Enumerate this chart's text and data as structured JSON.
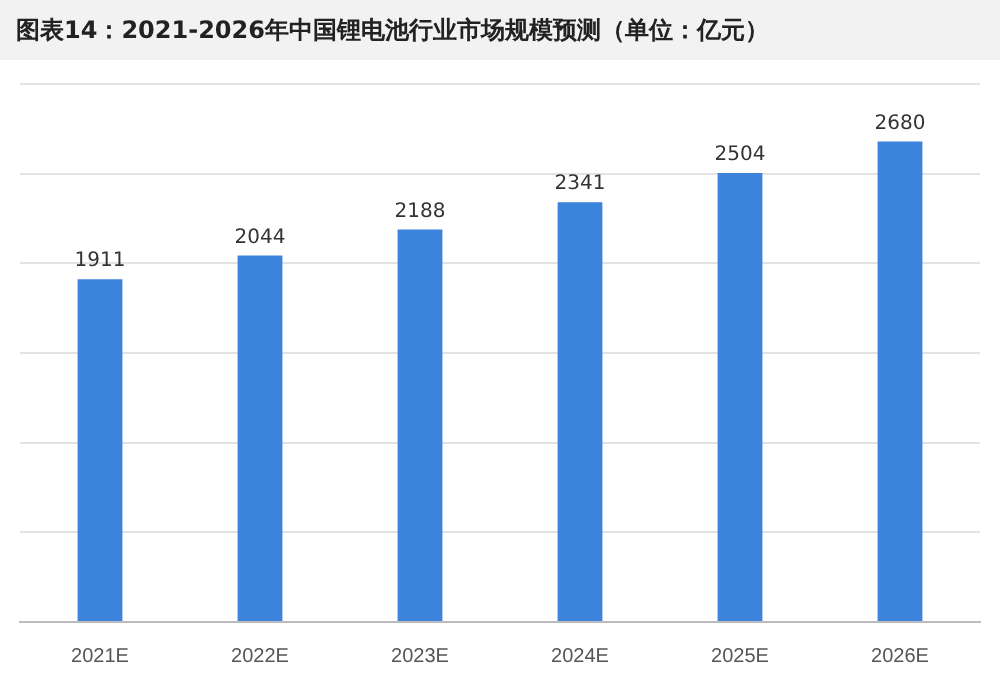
{
  "chart_data": {
    "type": "bar",
    "title": "图表14：2021-2026年中国锂电池行业市场规模预测（单位：亿元）",
    "categories": [
      "2021E",
      "2022E",
      "2023E",
      "2024E",
      "2025E",
      "2026E"
    ],
    "values": [
      1911,
      2044,
      2188,
      2341,
      2504,
      2680
    ],
    "color": "#3c84db",
    "ylim": [
      0,
      3000
    ],
    "yticks": [
      {
        "value": 0,
        "label": null
      },
      {
        "value": 500,
        "label": null
      },
      {
        "value": 1000,
        "label": null
      },
      {
        "value": 1500,
        "label": null
      },
      {
        "value": 2000,
        "label": null
      },
      {
        "value": 2500,
        "label": null
      },
      {
        "value": 3000,
        "label": null
      }
    ],
    "grid": "y",
    "tick_labels": "x",
    "data_labels": true
  }
}
